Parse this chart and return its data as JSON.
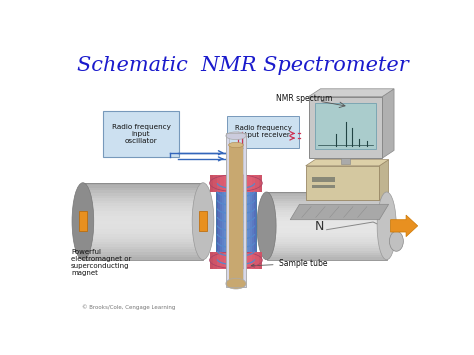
{
  "title": "Schematic  NMR Spectrometer",
  "title_color": "#1a1acc",
  "title_fontsize": 15,
  "bg_color": "#ffffff",
  "label_rf_input": "Radio frequency\ninput\noscillator",
  "label_rf_output": "Radio frequency\noutput receiver",
  "label_nmr": "NMR spectrum",
  "label_magnet": "Powerful\nelectromagnet or\nsuperconducting\nmagnet",
  "label_sample": "Sample tube",
  "label_copyright": "© Brooks/Cole, Cengage Learning",
  "label_N": "N",
  "coil_blue": "#7ab0d4",
  "coil_pink": "#e080a0",
  "sample_tan": "#c8a870",
  "arrow_orange": "#e89020",
  "arrow_blue": "#3366bb",
  "arrow_pink": "#cc3355",
  "box_fill": "#cce0f0",
  "box_edge": "#7799bb"
}
